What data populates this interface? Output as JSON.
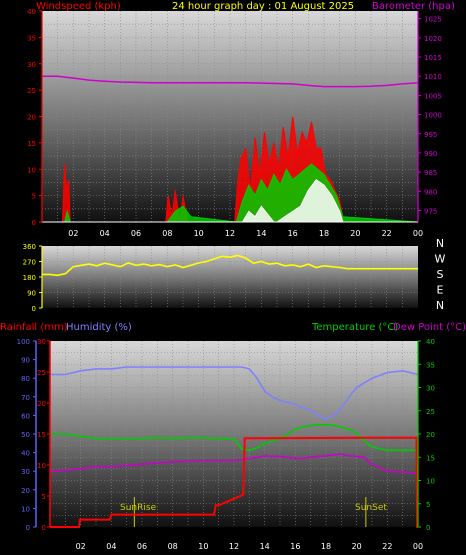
{
  "chart_data": [
    {
      "type": "line",
      "title": "24 hour graph day : 01 August 2025",
      "left_axis_label": "Windspeed (kph)",
      "right_axis_label": "Barometer (hpa)",
      "left_ylim": [
        0,
        40
      ],
      "left_ticks": [
        "0",
        "5",
        "10",
        "15",
        "20",
        "25",
        "30",
        "35",
        "40"
      ],
      "right_ylim": [
        972,
        1027
      ],
      "right_ticks": [
        "975",
        "980",
        "985",
        "990",
        "995",
        "1000",
        "1005",
        "1010",
        "1015",
        "1020",
        "1025"
      ],
      "x_ticks": [
        "02",
        "04",
        "06",
        "08",
        "10",
        "12",
        "14",
        "16",
        "18",
        "20",
        "22",
        "00"
      ],
      "colors": {
        "gust": "#ff0000",
        "avg": "#00cc00",
        "low": "#ffffff",
        "barometer": "#d000d0",
        "left_label": "#ff0000",
        "right_label": "#d000d0",
        "title": "#ffff00"
      },
      "series": [
        {
          "key": "barometer",
          "axis": "right",
          "x": [
            0,
            1,
            2,
            3,
            4,
            5,
            6,
            7,
            8,
            9,
            10,
            11,
            12,
            13,
            14,
            15,
            16,
            17,
            18,
            19,
            20,
            21,
            22,
            23,
            24
          ],
          "values": [
            1010,
            1010,
            1009.5,
            1009,
            1008.7,
            1008.5,
            1008.4,
            1008.3,
            1008.3,
            1008.3,
            1008.3,
            1008.3,
            1008.3,
            1008.3,
            1008.2,
            1008.1,
            1008,
            1007.6,
            1007.3,
            1007.3,
            1007.3,
            1007.4,
            1007.6,
            1008,
            1008.3
          ]
        },
        {
          "key": "gust",
          "axis": "left",
          "x": [
            0,
            1.3,
            1.45,
            1.55,
            1.7,
            1.8,
            2.0,
            7.9,
            8.05,
            8.3,
            8.5,
            8.8,
            9.0,
            9.3,
            9.6,
            12.3,
            12.5,
            12.7,
            13.0,
            13.3,
            13.6,
            13.9,
            14.2,
            14.5,
            14.8,
            15.1,
            15.4,
            15.7,
            16.0,
            16.3,
            16.6,
            16.9,
            17.2,
            17.5,
            17.8,
            18.1,
            18.4,
            18.7,
            19.0,
            19.2,
            19.3,
            24
          ],
          "values": [
            0,
            0,
            11,
            6,
            8,
            0,
            0,
            0,
            5,
            1,
            6,
            0,
            5,
            0,
            0,
            0,
            8,
            12,
            14,
            6,
            16,
            9,
            17,
            11,
            15,
            10,
            18,
            12,
            20,
            13,
            17,
            15,
            19,
            14,
            14,
            9,
            8,
            6,
            4,
            1,
            0,
            0
          ]
        },
        {
          "key": "avg",
          "axis": "left",
          "x": [
            0,
            1.45,
            1.6,
            1.8,
            8.0,
            8.5,
            9.0,
            9.5,
            12.4,
            12.8,
            13.2,
            13.6,
            14.0,
            14.4,
            14.8,
            15.2,
            15.6,
            16.0,
            16.4,
            16.8,
            17.2,
            17.6,
            18.0,
            18.4,
            18.8,
            19.2,
            24
          ],
          "values": [
            0,
            0,
            2,
            0,
            0,
            2,
            3,
            1,
            0,
            4,
            7,
            5,
            8,
            6,
            9,
            7,
            10,
            8,
            9,
            10,
            11,
            10,
            9,
            7,
            5,
            1,
            0
          ]
        },
        {
          "key": "low",
          "axis": "left",
          "x": [
            0,
            12.8,
            13.2,
            13.6,
            14.0,
            14.8,
            15.0,
            15.5,
            16.0,
            16.5,
            17.0,
            17.5,
            18.0,
            18.5,
            19.0,
            19.2,
            24
          ],
          "values": [
            0,
            0,
            2,
            1,
            3,
            0,
            0,
            1,
            2,
            3,
            6,
            8,
            7,
            5,
            2,
            0,
            0
          ]
        }
      ]
    },
    {
      "type": "scatter",
      "left_ticks": [
        "0",
        "90",
        "180",
        "270",
        "360"
      ],
      "ylim": [
        0,
        360
      ],
      "right_labels": [
        "N",
        "W",
        "S",
        "E",
        "N"
      ],
      "color": "#ffff00",
      "series": [
        {
          "key": "direction",
          "x": [
            0,
            0.5,
            1.0,
            1.5,
            2.0,
            2.5,
            3.0,
            3.5,
            4.0,
            4.5,
            5.0,
            5.5,
            6.0,
            6.5,
            7.0,
            7.5,
            8.0,
            8.5,
            9.0,
            9.5,
            10.0,
            10.5,
            11.0,
            11.5,
            12.0,
            12.5,
            13.0,
            13.5,
            14.0,
            14.5,
            15.0,
            15.5,
            16.0,
            16.5,
            17.0,
            17.5,
            18.0,
            18.5,
            19.0,
            19.5,
            20,
            21,
            22,
            23,
            24
          ],
          "values": [
            195,
            195,
            190,
            200,
            240,
            248,
            255,
            245,
            260,
            250,
            240,
            262,
            248,
            255,
            245,
            252,
            240,
            250,
            235,
            248,
            262,
            270,
            285,
            300,
            295,
            305,
            290,
            260,
            270,
            255,
            260,
            245,
            250,
            240,
            255,
            235,
            245,
            240,
            235,
            228,
            228,
            228,
            228,
            228,
            228
          ]
        }
      ]
    },
    {
      "type": "line",
      "left_label_1": "Rainfall (mm)",
      "left_label_2": "Humidity (%)",
      "right_label_1": "Temperature (°C)",
      "right_label_2": "Dew Point (°C)",
      "humidity_ticks": [
        "0",
        "10",
        "20",
        "30",
        "40",
        "50",
        "60",
        "70",
        "80",
        "90",
        "100"
      ],
      "rain_ticks": [
        "0",
        "5",
        "10",
        "15",
        "20",
        "25",
        "30"
      ],
      "temp_ticks": [
        "0",
        "5",
        "10",
        "15",
        "20",
        "25",
        "30",
        "35",
        "40"
      ],
      "humidity_ylim": [
        0,
        100
      ],
      "rain_ylim": [
        0,
        30
      ],
      "temp_ylim": [
        0,
        40
      ],
      "x_ticks": [
        "02",
        "04",
        "06",
        "08",
        "10",
        "12",
        "14",
        "16",
        "18",
        "20",
        "22",
        "00"
      ],
      "sunrise_label": "SunRise",
      "sunset_label": "SunSet",
      "sunrise_hour": 5.5,
      "sunset_hour": 20.6,
      "colors": {
        "rain": "#ff0000",
        "humidity": "#8080ff",
        "temperature": "#00cc00",
        "dewpoint": "#cc00cc",
        "rain_axis": "#ff0000",
        "humidity_axis": "#6060ff",
        "temp_axis": "#00cc00",
        "dew_label": "#cc00cc",
        "sun": "#cccc00"
      },
      "series": [
        {
          "key": "humidity",
          "axis": "humidity",
          "x": [
            0,
            1,
            2,
            3,
            4,
            5,
            6,
            7,
            8,
            9,
            10,
            11,
            12,
            12.5,
            13,
            13.5,
            14,
            14.5,
            15,
            15.5,
            16,
            16.5,
            17,
            17.5,
            18,
            18.5,
            19,
            19.5,
            20,
            21,
            22,
            23,
            24
          ],
          "values": [
            82,
            82,
            84,
            85,
            85,
            86,
            86,
            86,
            86,
            86,
            86,
            86,
            86,
            86,
            85,
            80,
            73,
            70,
            68,
            67,
            66,
            64,
            63,
            60,
            58,
            60,
            64,
            70,
            75,
            80,
            83,
            84,
            82
          ]
        },
        {
          "key": "temperature",
          "axis": "temp",
          "x": [
            0,
            1,
            2,
            3,
            4,
            5,
            6,
            7,
            8,
            9,
            10,
            11,
            12,
            12.5,
            13,
            13.5,
            14,
            14.5,
            15,
            15.5,
            16,
            16.5,
            17,
            17.5,
            18,
            18.5,
            19,
            19.5,
            20,
            20.5,
            21,
            22,
            23,
            24
          ],
          "values": [
            20,
            20,
            19.5,
            19,
            19,
            19,
            19,
            19.2,
            19,
            19.2,
            19.2,
            19,
            19,
            16.8,
            16.5,
            17,
            18,
            18.5,
            19,
            20,
            21,
            21.5,
            21.8,
            22,
            22,
            21.8,
            21.5,
            21,
            20.2,
            18.5,
            17.2,
            16.5,
            16.5,
            16.5
          ]
        },
        {
          "key": "dewpoint",
          "axis": "temp",
          "x": [
            0,
            1,
            2,
            3,
            4,
            5,
            6,
            7,
            8,
            9,
            10,
            11,
            12,
            12.5,
            13,
            13.5,
            14,
            14.5,
            15,
            15.5,
            16,
            16.5,
            17,
            17.5,
            18,
            18.5,
            19,
            19.5,
            20,
            20.5,
            21,
            22,
            23,
            24
          ],
          "values": [
            12,
            12.2,
            12.5,
            13,
            13,
            13.2,
            13.5,
            13.8,
            14,
            14.2,
            14.3,
            14.3,
            14.3,
            14.5,
            14.8,
            15,
            15.3,
            15.2,
            15.2,
            15,
            14.8,
            14.8,
            15,
            15.2,
            15.3,
            15.5,
            15.7,
            15.3,
            15.2,
            15,
            13.5,
            12,
            11.8,
            11.5
          ]
        },
        {
          "key": "rain",
          "axis": "rain",
          "x": [
            0,
            1.9,
            1.95,
            3.9,
            4.0,
            10.7,
            10.8,
            10.9,
            11.0,
            12.6,
            12.7,
            12.8,
            21.0,
            22.0,
            23.9,
            23.95,
            24
          ],
          "values": [
            0,
            0,
            1.2,
            1.2,
            2.0,
            2.0,
            3.5,
            3.5,
            3.5,
            5.2,
            14.3,
            14.3,
            14.4,
            14.4,
            14.4,
            0,
            0
          ]
        }
      ]
    }
  ]
}
